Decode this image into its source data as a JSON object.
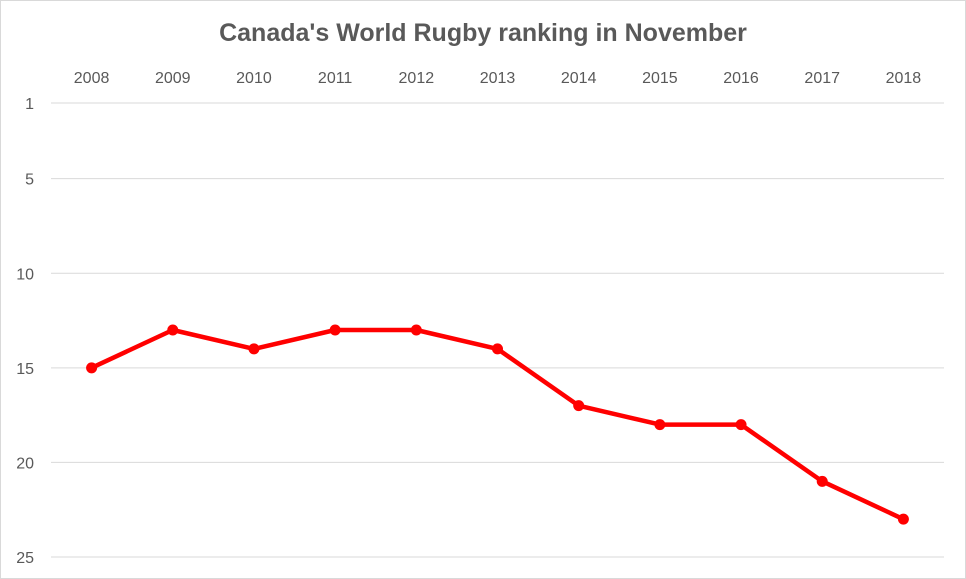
{
  "chart_data": {
    "type": "line",
    "title": "Canada's World Rugby ranking in November",
    "xlabel": "",
    "ylabel": "",
    "x": [
      "2008",
      "2009",
      "2010",
      "2011",
      "2012",
      "2013",
      "2014",
      "2015",
      "2016",
      "2017",
      "2018"
    ],
    "series": [
      {
        "values": [
          15,
          13,
          14,
          13,
          13,
          14,
          17,
          18,
          18,
          21,
          23
        ],
        "color": "#ff0000"
      }
    ],
    "y_ticks": [
      1,
      5,
      10,
      15,
      20,
      25
    ],
    "ylim": [
      1,
      25
    ],
    "y_reversed": true,
    "x_axis_position": "top",
    "grid": true,
    "grid_color": "#d9d9d9",
    "legend": "none"
  }
}
